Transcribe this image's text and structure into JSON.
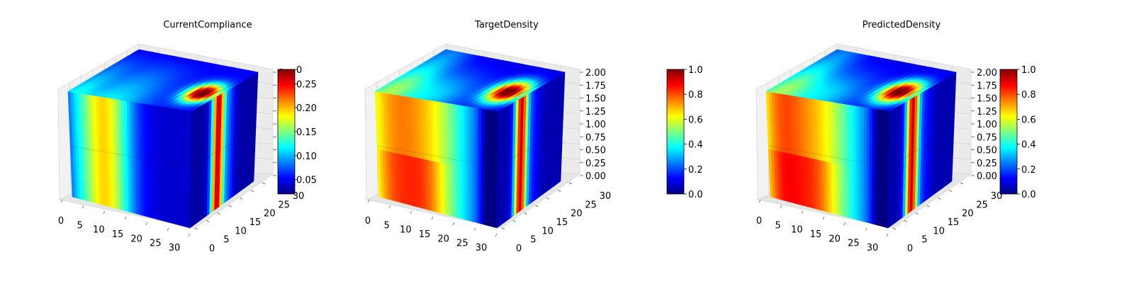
{
  "chart_data": [
    {
      "type": "3d-voxel-heatmap",
      "title": "CurrentCompliance",
      "x_ticks": [
        "0",
        "5",
        "10",
        "15",
        "20",
        "25",
        "30"
      ],
      "y_ticks": [
        "0",
        "5",
        "10",
        "15",
        "20",
        "25",
        "30"
      ],
      "z_ticks": [
        "0",
        "0",
        "0",
        "0",
        "0",
        "0",
        "0",
        "0",
        "0"
      ],
      "colorbar": {
        "min": 0.02,
        "max": 0.28,
        "ticks": [
          "0.05",
          "0.10",
          "0.15",
          "0.20",
          "0.25",
          "0"
        ]
      },
      "grid": true
    },
    {
      "type": "3d-voxel-heatmap",
      "title": "TargetDensity",
      "x_ticks": [
        "0",
        "5",
        "10",
        "15",
        "20",
        "25",
        "30"
      ],
      "y_ticks": [
        "0",
        "5",
        "10",
        "15",
        "20",
        "25",
        "30"
      ],
      "z_ticks": [
        "0.00",
        "0.25",
        "0.50",
        "0.75",
        "1.00",
        "1.25",
        "1.50",
        "1.75",
        "2.00"
      ],
      "colorbar": {
        "min": 0.0,
        "max": 1.0,
        "ticks": [
          "0.0",
          "0.2",
          "0.4",
          "0.6",
          "0.8",
          "1.0"
        ]
      },
      "grid": true
    },
    {
      "type": "3d-voxel-heatmap",
      "title": "PredictedDensity",
      "x_ticks": [
        "0",
        "5",
        "10",
        "15",
        "20",
        "25",
        "30"
      ],
      "y_ticks": [
        "0",
        "5",
        "10",
        "15",
        "20",
        "25",
        "30"
      ],
      "z_ticks": [
        "0.00",
        "0.25",
        "0.50",
        "0.75",
        "1.00",
        "1.25",
        "1.50",
        "1.75",
        "2.00"
      ],
      "colorbar": {
        "min": 0.0,
        "max": 1.0,
        "ticks": [
          "0.0",
          "0.2",
          "0.4",
          "0.6",
          "0.8",
          "1.0"
        ]
      },
      "grid": true
    }
  ],
  "colors": {
    "jet": [
      "#00007f",
      "#0000ff",
      "#007fff",
      "#00ffff",
      "#7fff7f",
      "#ffff00",
      "#ff7f00",
      "#ff0000",
      "#7f0000"
    ]
  }
}
